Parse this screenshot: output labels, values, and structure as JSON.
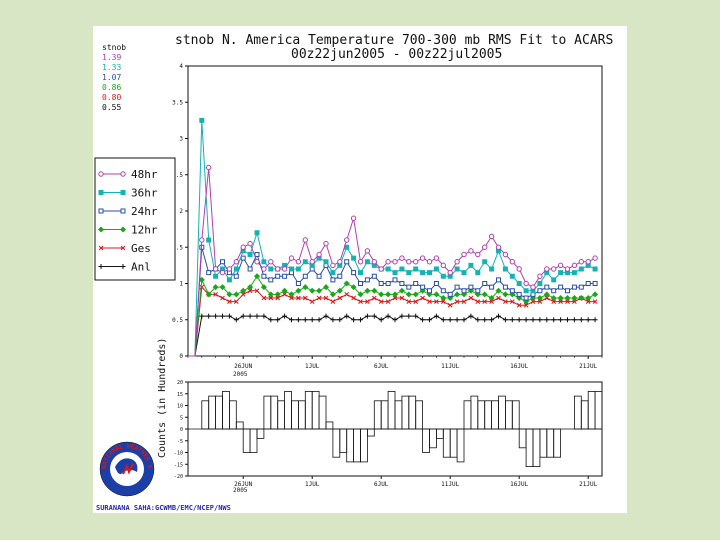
{
  "chart_data": [
    {
      "type": "line",
      "title": "stnob N. America Temperature 700-300 mb RMS Fit to ACARS",
      "subtitle": "00z22jun2005 - 00z22jul2005",
      "ylim": [
        0,
        4
      ],
      "y_ticks": [
        0,
        0.5,
        1,
        1.5,
        2,
        2.5,
        3,
        3.5,
        4
      ],
      "y_tick_labels": [
        "0",
        "0.5",
        "1",
        "1.5",
        "2",
        "2.5",
        "3",
        "3.5",
        "4"
      ],
      "x_tick_labels": [
        "26JUN",
        "1JUL",
        "6JUL",
        "11JUL",
        "16JUL",
        "21JUL"
      ],
      "x_tick_positions": [
        8,
        18,
        28,
        38,
        48,
        58
      ],
      "x_year_label": "2005",
      "xlim": [
        0,
        60
      ],
      "stnob_header": "stnob",
      "stnob_values": [
        {
          "value": "1.39",
          "color": "#b03fb0"
        },
        {
          "value": "1.33",
          "color": "#12b3b3"
        },
        {
          "value": "1.07",
          "color": "#2a4fa6"
        },
        {
          "value": "0.86",
          "color": "#18a818"
        },
        {
          "value": "0.80",
          "color": "#d81818"
        },
        {
          "value": "0.55",
          "color": "#111111"
        }
      ],
      "series": [
        {
          "name": "48hr",
          "color": "#b03fb0",
          "marker": "circle",
          "values": [
            0.0,
            0.0,
            1.6,
            2.6,
            1.2,
            1.15,
            1.2,
            1.3,
            1.5,
            1.55,
            1.3,
            1.2,
            1.3,
            1.2,
            1.2,
            1.35,
            1.3,
            1.6,
            1.3,
            1.4,
            1.55,
            1.25,
            1.3,
            1.6,
            1.9,
            1.3,
            1.45,
            1.3,
            1.2,
            1.3,
            1.3,
            1.35,
            1.3,
            1.3,
            1.35,
            1.3,
            1.35,
            1.25,
            1.15,
            1.3,
            1.4,
            1.45,
            1.4,
            1.5,
            1.65,
            1.5,
            1.4,
            1.3,
            1.2,
            1.0,
            0.95,
            1.1,
            1.2,
            1.2,
            1.25,
            1.2,
            1.25,
            1.3,
            1.3,
            1.35
          ]
        },
        {
          "name": "36hr",
          "color": "#12b3b3",
          "marker": "square",
          "values": [
            0.0,
            0.0,
            3.25,
            1.6,
            1.1,
            1.2,
            1.05,
            1.2,
            1.45,
            1.4,
            1.7,
            1.3,
            1.2,
            1.2,
            1.25,
            1.2,
            1.2,
            1.3,
            1.25,
            1.35,
            1.3,
            1.15,
            1.25,
            1.5,
            1.35,
            1.15,
            1.3,
            1.25,
            1.2,
            1.2,
            1.15,
            1.2,
            1.15,
            1.2,
            1.15,
            1.15,
            1.2,
            1.1,
            1.1,
            1.2,
            1.15,
            1.25,
            1.15,
            1.3,
            1.2,
            1.45,
            1.2,
            1.1,
            1.0,
            0.9,
            0.9,
            1.0,
            1.15,
            1.05,
            1.15,
            1.15,
            1.15,
            1.2,
            1.25,
            1.2
          ]
        },
        {
          "name": "24hr",
          "color": "#2a4fa6",
          "marker": "square-open",
          "values": [
            0.0,
            0.0,
            1.5,
            1.15,
            1.2,
            1.3,
            1.15,
            1.1,
            1.35,
            1.2,
            1.4,
            1.1,
            1.05,
            1.1,
            1.1,
            1.15,
            1.0,
            1.1,
            1.2,
            1.1,
            1.25,
            1.05,
            1.1,
            1.3,
            1.15,
            1.0,
            1.05,
            1.1,
            1.0,
            1.0,
            1.05,
            1.0,
            0.95,
            1.0,
            0.95,
            0.9,
            1.0,
            0.9,
            0.85,
            0.95,
            0.9,
            0.95,
            0.9,
            1.0,
            0.95,
            1.05,
            0.95,
            0.9,
            0.85,
            0.8,
            0.85,
            0.9,
            0.95,
            0.9,
            0.95,
            0.9,
            0.95,
            0.95,
            1.0,
            1.0
          ]
        },
        {
          "name": "12hr",
          "color": "#18a818",
          "marker": "diamond",
          "values": [
            0.0,
            0.0,
            1.05,
            0.85,
            0.95,
            0.95,
            0.85,
            0.85,
            0.9,
            0.95,
            1.1,
            0.95,
            0.85,
            0.85,
            0.9,
            0.85,
            0.9,
            0.95,
            0.9,
            0.9,
            0.95,
            0.85,
            0.9,
            1.0,
            0.95,
            0.85,
            0.9,
            0.9,
            0.85,
            0.85,
            0.85,
            0.9,
            0.85,
            0.85,
            0.9,
            0.85,
            0.85,
            0.8,
            0.8,
            0.85,
            0.85,
            0.9,
            0.85,
            0.85,
            0.8,
            0.9,
            0.85,
            0.85,
            0.8,
            0.75,
            0.8,
            0.8,
            0.85,
            0.8,
            0.8,
            0.8,
            0.8,
            0.8,
            0.8,
            0.85
          ]
        },
        {
          "name": "Ges",
          "color": "#d81818",
          "marker": "x",
          "values": [
            0.0,
            0.0,
            0.95,
            0.85,
            0.85,
            0.8,
            0.75,
            0.75,
            0.85,
            0.9,
            0.9,
            0.8,
            0.8,
            0.8,
            0.85,
            0.8,
            0.8,
            0.8,
            0.75,
            0.8,
            0.8,
            0.75,
            0.8,
            0.85,
            0.8,
            0.75,
            0.75,
            0.8,
            0.75,
            0.75,
            0.8,
            0.8,
            0.75,
            0.75,
            0.8,
            0.75,
            0.75,
            0.75,
            0.7,
            0.75,
            0.75,
            0.8,
            0.75,
            0.75,
            0.75,
            0.8,
            0.75,
            0.75,
            0.7,
            0.7,
            0.75,
            0.75,
            0.8,
            0.75,
            0.75,
            0.75,
            0.75,
            0.8,
            0.75,
            0.75
          ]
        },
        {
          "name": "Anl",
          "color": "#111111",
          "marker": "plus",
          "values": [
            0.0,
            0.0,
            0.55,
            0.55,
            0.55,
            0.55,
            0.55,
            0.5,
            0.55,
            0.55,
            0.55,
            0.55,
            0.5,
            0.5,
            0.55,
            0.5,
            0.5,
            0.5,
            0.5,
            0.5,
            0.55,
            0.5,
            0.5,
            0.55,
            0.5,
            0.5,
            0.55,
            0.55,
            0.5,
            0.55,
            0.5,
            0.55,
            0.55,
            0.55,
            0.5,
            0.5,
            0.55,
            0.5,
            0.5,
            0.5,
            0.5,
            0.55,
            0.5,
            0.5,
            0.5,
            0.55,
            0.5,
            0.5,
            0.5,
            0.5,
            0.5,
            0.5,
            0.5,
            0.5,
            0.5,
            0.5,
            0.5,
            0.5,
            0.5,
            0.5
          ]
        }
      ],
      "legend_placement": "left"
    },
    {
      "type": "bar",
      "ylabel": "Counts (in Hundreds)",
      "ylim": [
        -20,
        20
      ],
      "y_ticks": [
        -20,
        -15,
        -10,
        -5,
        0,
        5,
        10,
        15,
        20
      ],
      "y_tick_labels": [
        "-20",
        "-15",
        "-10",
        "-5",
        "0",
        "5",
        "10",
        "15",
        "20"
      ],
      "x_tick_labels": [
        "26JUN",
        "1JUL",
        "6JUL",
        "11JUL",
        "16JUL",
        "21JUL"
      ],
      "x_year_label": "2005",
      "values": [
        0,
        0,
        12,
        14,
        14,
        16,
        12,
        3,
        -10,
        -10,
        -4,
        14,
        14,
        12,
        16,
        12,
        12,
        16,
        16,
        14,
        3,
        -12,
        -10,
        -14,
        -14,
        -14,
        -3,
        12,
        12,
        16,
        12,
        14,
        14,
        12,
        -10,
        -8,
        -4,
        -12,
        -12,
        -14,
        12,
        14,
        12,
        12,
        12,
        14,
        12,
        12,
        -8,
        -16,
        -16,
        -12,
        -12,
        -12,
        0,
        0,
        14,
        12,
        16,
        16
      ]
    }
  ],
  "footer": {
    "credit": "SURANANA SAHA:GCWMB/EMC/NCEP/NWS"
  },
  "logo": {
    "text": "NATIONAL WEATHER SERVICE"
  }
}
